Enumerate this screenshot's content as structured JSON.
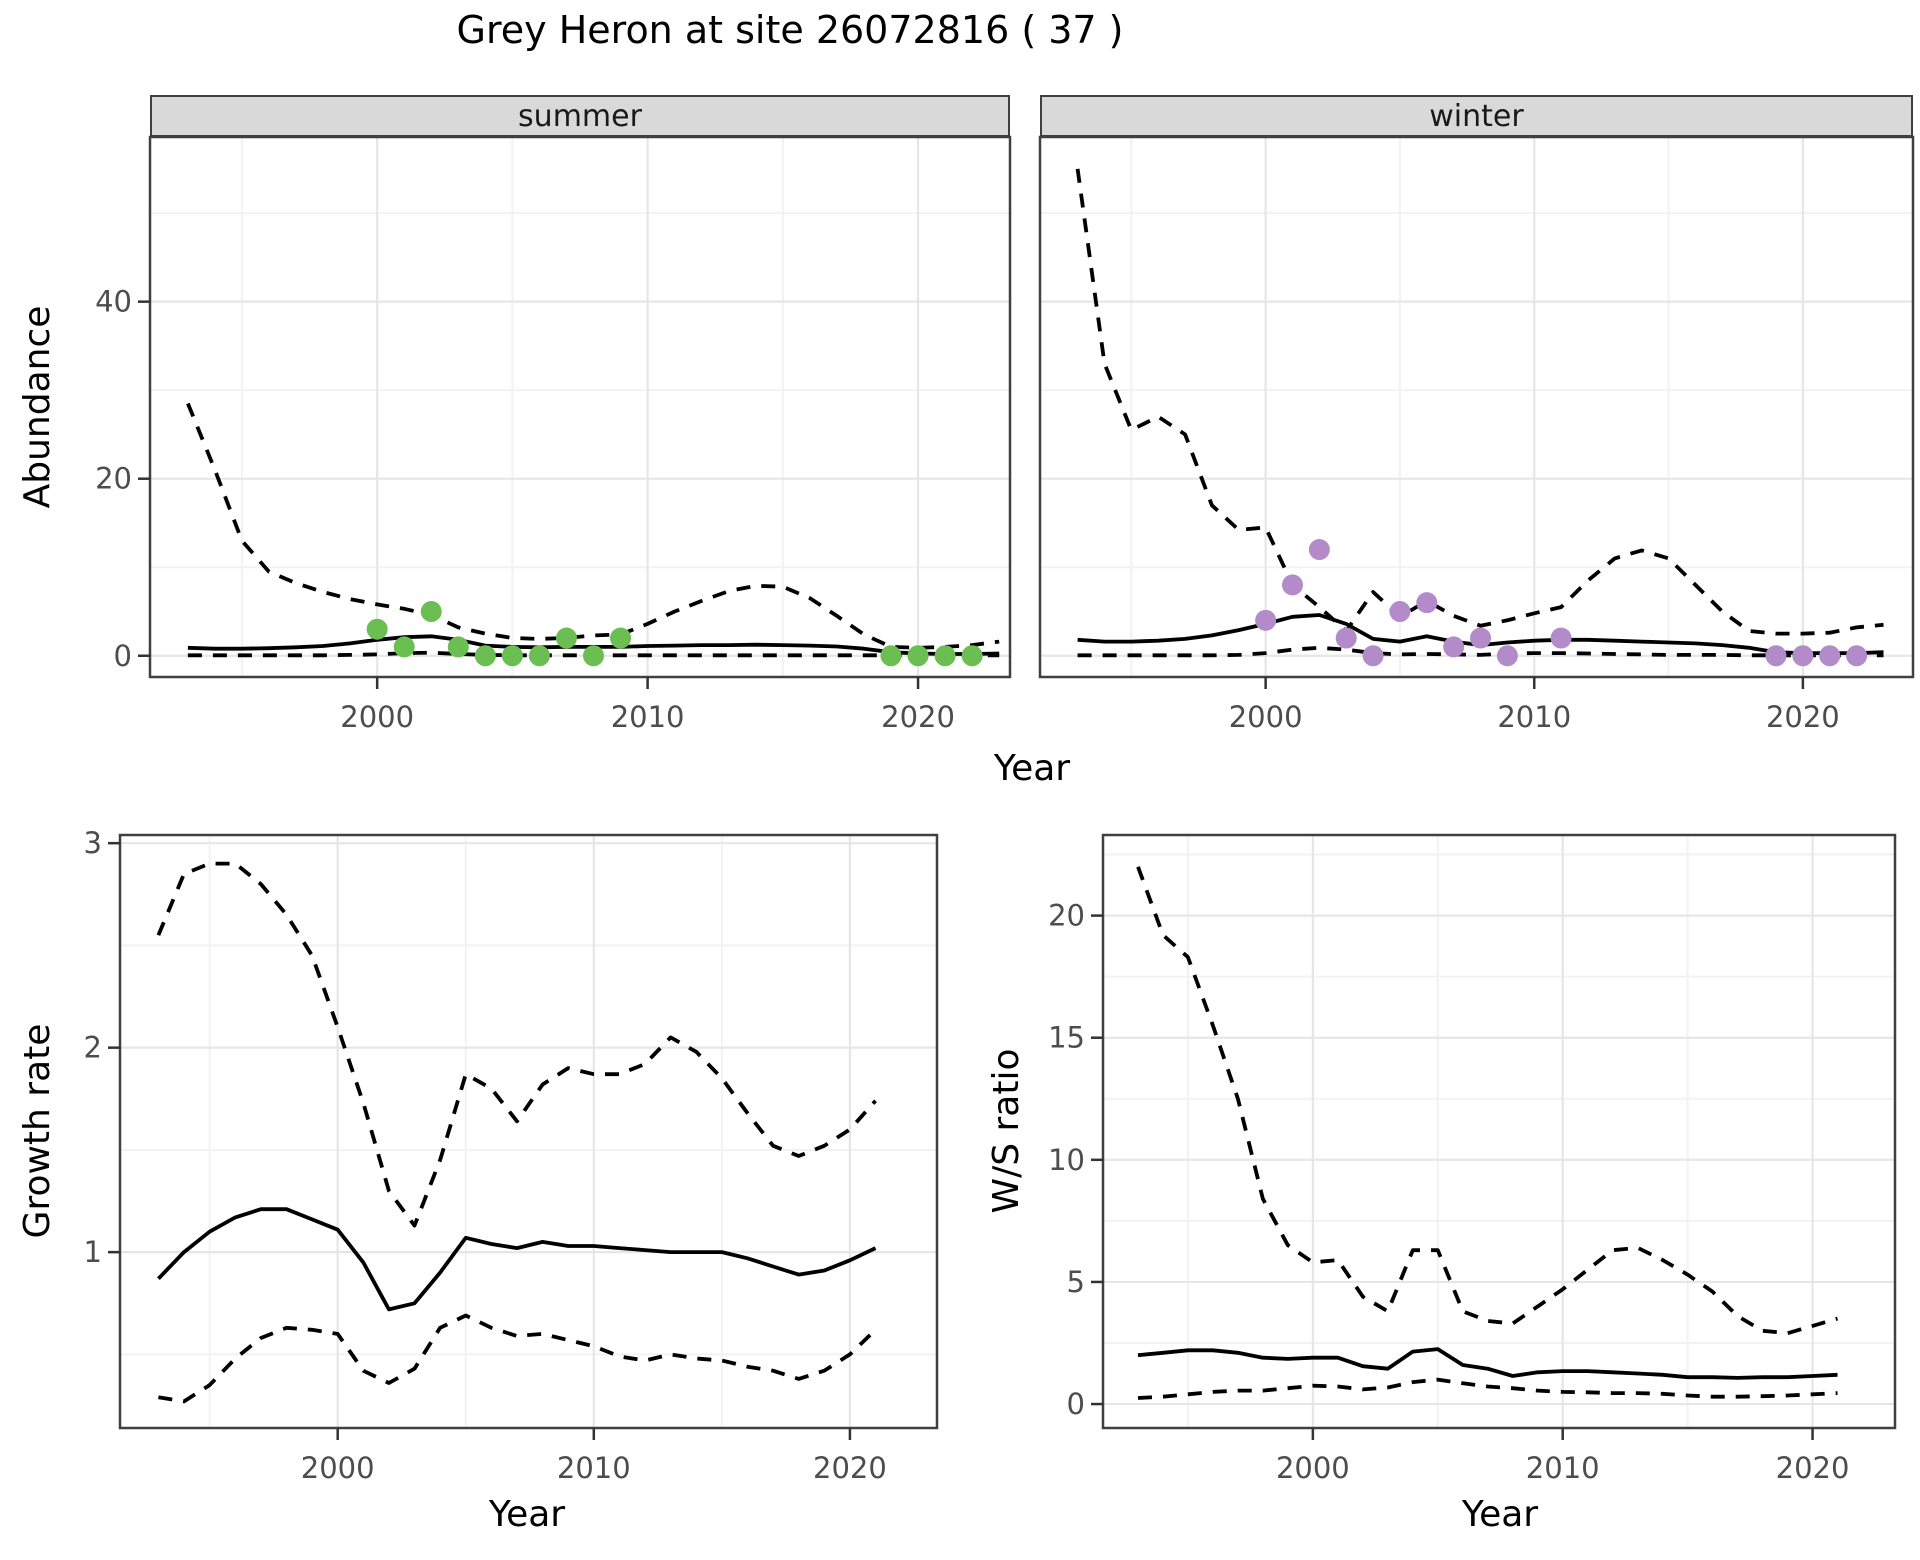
{
  "title": "Grey Heron at site 26072816 ( 37 )",
  "facets": {
    "summer": "summer",
    "winter": "winter"
  },
  "axis_titles": {
    "abundance": "Abundance",
    "year_top": "Year",
    "growth_rate": "Growth rate",
    "year_growth": "Year",
    "ws_ratio": "W/S ratio",
    "year_ws": "Year"
  },
  "colors": {
    "summer_points": "#6bbe51",
    "winter_points": "#b38bc9",
    "line": "#000000",
    "strip_bg": "#d9d9d9",
    "panel_border": "#404040",
    "grid_major": "#e6e6e6",
    "grid_minor": "#f2f2f2",
    "tick_mark": "#333333",
    "tick_label": "#4d4d4d"
  },
  "chart_data": [
    {
      "id": "summer",
      "type": "line",
      "facet_label": "summer",
      "xlabel": "Year",
      "ylabel": "Abundance",
      "xlim": [
        1991.6,
        2023.4
      ],
      "ylim": [
        -2.4,
        58.6
      ],
      "x_ticks": [
        2000,
        2010,
        2020
      ],
      "x_minor": [
        1995,
        2005,
        2015
      ],
      "y_ticks": [
        0,
        20,
        40
      ],
      "y_minor": [
        10,
        30,
        50
      ],
      "show_y_labels": true,
      "grid": true,
      "years": [
        1993,
        1994,
        1995,
        1996,
        1997,
        1998,
        1999,
        2000,
        2001,
        2002,
        2003,
        2004,
        2005,
        2006,
        2007,
        2008,
        2009,
        2010,
        2011,
        2012,
        2013,
        2014,
        2015,
        2016,
        2017,
        2018,
        2019,
        2020,
        2021,
        2022,
        2023
      ],
      "series": [
        {
          "name": "median",
          "style": "solid",
          "values": [
            0.9,
            0.8,
            0.8,
            0.85,
            0.95,
            1.1,
            1.4,
            1.8,
            2.1,
            2.2,
            1.8,
            1.15,
            1.0,
            0.95,
            1.0,
            1.0,
            1.0,
            1.1,
            1.15,
            1.2,
            1.2,
            1.25,
            1.2,
            1.15,
            1.05,
            0.8,
            0.4,
            0.25,
            0.2,
            0.2,
            0.25
          ]
        },
        {
          "name": "upper_ci",
          "style": "dashed",
          "values": [
            28.5,
            21,
            13,
            9.5,
            8.2,
            7.2,
            6.4,
            5.8,
            5.3,
            4.6,
            3.2,
            2.5,
            2.0,
            1.9,
            2.0,
            2.3,
            2.4,
            3.6,
            5.0,
            6.2,
            7.3,
            7.9,
            7.8,
            6.5,
            4.5,
            2.4,
            1.0,
            0.9,
            1.0,
            1.2,
            1.6
          ]
        },
        {
          "name": "lower_ci",
          "style": "dashed",
          "values": [
            0.05,
            0.05,
            0.05,
            0.05,
            0.05,
            0.05,
            0.1,
            0.15,
            0.3,
            0.35,
            0.2,
            0.1,
            0.05,
            0.05,
            0.05,
            0.05,
            0.05,
            0.05,
            0.05,
            0.05,
            0.05,
            0.05,
            0.05,
            0.05,
            0.05,
            0.05,
            0.05,
            0.05,
            0.05,
            0.05,
            0.05
          ]
        }
      ],
      "points": {
        "color_key": "summer_points",
        "data": [
          [
            2000,
            3
          ],
          [
            2001,
            1
          ],
          [
            2002,
            5
          ],
          [
            2003,
            1
          ],
          [
            2004,
            0
          ],
          [
            2005,
            0
          ],
          [
            2006,
            0
          ],
          [
            2007,
            2
          ],
          [
            2008,
            0
          ],
          [
            2009,
            2
          ],
          [
            2019,
            0
          ],
          [
            2020,
            0
          ],
          [
            2021,
            0
          ],
          [
            2022,
            0
          ]
        ]
      }
    },
    {
      "id": "winter",
      "type": "line",
      "facet_label": "winter",
      "xlabel": "Year",
      "ylabel": "Abundance",
      "xlim": [
        1991.6,
        2024.1
      ],
      "ylim": [
        -2.4,
        58.6
      ],
      "x_ticks": [
        2000,
        2010,
        2020
      ],
      "x_minor": [
        1995,
        2005,
        2015
      ],
      "y_ticks": [
        0,
        20,
        40
      ],
      "y_minor": [
        10,
        30,
        50
      ],
      "show_y_labels": false,
      "grid": true,
      "years": [
        1993,
        1994,
        1995,
        1996,
        1997,
        1998,
        1999,
        2000,
        2001,
        2002,
        2003,
        2004,
        2005,
        2006,
        2007,
        2008,
        2009,
        2010,
        2011,
        2012,
        2013,
        2014,
        2015,
        2016,
        2017,
        2018,
        2019,
        2020,
        2021,
        2022,
        2023
      ],
      "series": [
        {
          "name": "median",
          "style": "solid",
          "values": [
            1.8,
            1.6,
            1.6,
            1.7,
            1.9,
            2.3,
            2.9,
            3.6,
            4.4,
            4.6,
            3.6,
            1.9,
            1.6,
            2.2,
            1.6,
            1.2,
            1.5,
            1.7,
            1.8,
            1.8,
            1.7,
            1.6,
            1.5,
            1.4,
            1.2,
            0.9,
            0.4,
            0.3,
            0.3,
            0.3,
            0.4
          ]
        },
        {
          "name": "upper_ci",
          "style": "dashed",
          "values": [
            55,
            33,
            25.5,
            27,
            25,
            17,
            14.2,
            14.5,
            8,
            5.5,
            2.8,
            7.2,
            4.4,
            6.2,
            4.5,
            3.4,
            4.0,
            4.8,
            5.5,
            8.5,
            11,
            11.9,
            11,
            8,
            5,
            2.8,
            2.5,
            2.5,
            2.6,
            3.2,
            3.5
          ]
        },
        {
          "name": "lower_ci",
          "style": "dashed",
          "values": [
            0.05,
            0.05,
            0.05,
            0.05,
            0.05,
            0.05,
            0.1,
            0.3,
            0.7,
            0.9,
            0.7,
            0.3,
            0.15,
            0.2,
            0.15,
            0.1,
            0.25,
            0.3,
            0.3,
            0.25,
            0.2,
            0.15,
            0.1,
            0.1,
            0.1,
            0.05,
            0.05,
            0.05,
            0.05,
            0.05,
            0.05
          ]
        }
      ],
      "points": {
        "color_key": "winter_points",
        "data": [
          [
            2000,
            4
          ],
          [
            2001,
            8
          ],
          [
            2002,
            12
          ],
          [
            2003,
            2
          ],
          [
            2004,
            0
          ],
          [
            2005,
            5
          ],
          [
            2006,
            6
          ],
          [
            2007,
            1
          ],
          [
            2008,
            2
          ],
          [
            2009,
            0
          ],
          [
            2011,
            2
          ],
          [
            2019,
            0
          ],
          [
            2020,
            0
          ],
          [
            2021,
            0
          ],
          [
            2022,
            0
          ]
        ]
      }
    },
    {
      "id": "growth",
      "type": "line",
      "facet_label": "",
      "xlabel": "Year",
      "ylabel": "Growth rate",
      "xlim": [
        1991.5,
        2023.4
      ],
      "ylim": [
        0.14,
        3.04
      ],
      "x_ticks": [
        2000,
        2010,
        2020
      ],
      "x_minor": [
        1995,
        2005,
        2015
      ],
      "y_ticks": [
        1,
        2,
        3
      ],
      "y_minor": [
        0.5,
        1.5,
        2.5
      ],
      "show_y_labels": true,
      "grid": true,
      "years": [
        1993,
        1994,
        1995,
        1996,
        1997,
        1998,
        1999,
        2000,
        2001,
        2002,
        2003,
        2004,
        2005,
        2006,
        2007,
        2008,
        2009,
        2010,
        2011,
        2012,
        2013,
        2014,
        2015,
        2016,
        2017,
        2018,
        2019,
        2020,
        2021
      ],
      "series": [
        {
          "name": "median",
          "style": "solid",
          "values": [
            0.87,
            1.0,
            1.1,
            1.17,
            1.21,
            1.21,
            1.16,
            1.11,
            0.95,
            0.72,
            0.75,
            0.9,
            1.07,
            1.04,
            1.02,
            1.05,
            1.03,
            1.03,
            1.02,
            1.01,
            1.0,
            1.0,
            1.0,
            0.97,
            0.93,
            0.89,
            0.91,
            0.96,
            1.02
          ]
        },
        {
          "name": "upper_ci",
          "style": "dashed",
          "values": [
            2.55,
            2.85,
            2.9,
            2.9,
            2.8,
            2.65,
            2.45,
            2.1,
            1.73,
            1.3,
            1.13,
            1.45,
            1.87,
            1.8,
            1.64,
            1.82,
            1.9,
            1.87,
            1.87,
            1.92,
            2.05,
            1.98,
            1.85,
            1.68,
            1.52,
            1.47,
            1.52,
            1.6,
            1.74
          ]
        },
        {
          "name": "lower_ci",
          "style": "dashed",
          "values": [
            0.29,
            0.27,
            0.35,
            0.48,
            0.58,
            0.63,
            0.62,
            0.6,
            0.42,
            0.36,
            0.43,
            0.63,
            0.69,
            0.63,
            0.59,
            0.6,
            0.57,
            0.54,
            0.49,
            0.47,
            0.5,
            0.48,
            0.47,
            0.44,
            0.42,
            0.38,
            0.42,
            0.5,
            0.62
          ]
        }
      ],
      "points": null
    },
    {
      "id": "ws",
      "type": "line",
      "facet_label": "",
      "xlabel": "Year",
      "ylabel": "W/S ratio",
      "xlim": [
        1991.6,
        2023.3
      ],
      "ylim": [
        -0.98,
        23.3
      ],
      "x_ticks": [
        2000,
        2010,
        2020
      ],
      "x_minor": [
        1995,
        2005,
        2015
      ],
      "y_ticks": [
        0,
        5,
        10,
        15,
        20
      ],
      "y_minor": [
        2.5,
        7.5,
        12.5,
        17.5,
        22.5
      ],
      "show_y_labels": true,
      "grid": true,
      "years": [
        1993,
        1994,
        1995,
        1996,
        1997,
        1998,
        1999,
        2000,
        2001,
        2002,
        2003,
        2004,
        2005,
        2006,
        2007,
        2008,
        2009,
        2010,
        2011,
        2012,
        2013,
        2014,
        2015,
        2016,
        2017,
        2018,
        2019,
        2020,
        2021
      ],
      "series": [
        {
          "name": "median",
          "style": "solid",
          "values": [
            2.0,
            2.1,
            2.2,
            2.2,
            2.1,
            1.9,
            1.85,
            1.9,
            1.9,
            1.55,
            1.45,
            2.15,
            2.25,
            1.6,
            1.45,
            1.15,
            1.3,
            1.35,
            1.35,
            1.3,
            1.25,
            1.2,
            1.1,
            1.1,
            1.07,
            1.1,
            1.1,
            1.15,
            1.2
          ]
        },
        {
          "name": "upper_ci",
          "style": "dashed",
          "values": [
            22,
            19.2,
            18.3,
            15.5,
            12.5,
            8.4,
            6.5,
            5.8,
            5.9,
            4.4,
            3.8,
            6.3,
            6.3,
            3.8,
            3.4,
            3.3,
            4.0,
            4.7,
            5.5,
            6.3,
            6.4,
            5.9,
            5.3,
            4.6,
            3.6,
            3.0,
            2.9,
            3.2,
            3.5
          ]
        },
        {
          "name": "lower_ci",
          "style": "dashed",
          "values": [
            0.25,
            0.3,
            0.4,
            0.5,
            0.55,
            0.55,
            0.65,
            0.75,
            0.72,
            0.6,
            0.68,
            0.9,
            1.0,
            0.85,
            0.72,
            0.65,
            0.55,
            0.5,
            0.48,
            0.45,
            0.45,
            0.42,
            0.35,
            0.3,
            0.3,
            0.32,
            0.35,
            0.4,
            0.45
          ]
        }
      ],
      "points": null
    }
  ]
}
